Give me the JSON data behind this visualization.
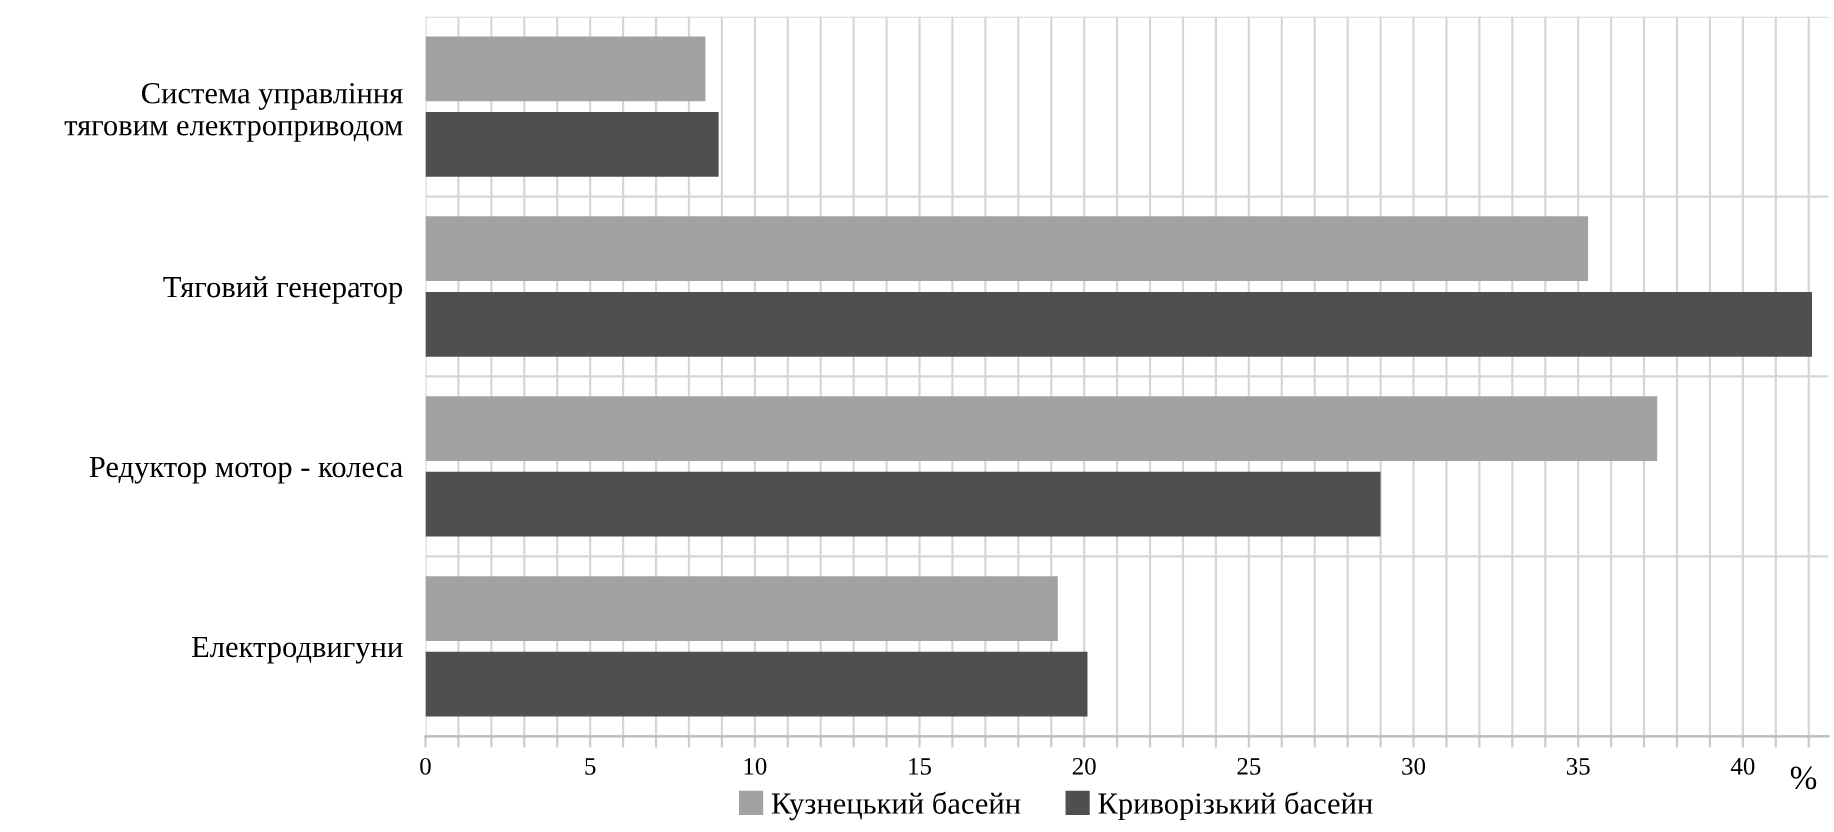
{
  "chart_data": {
    "type": "bar",
    "orientation": "horizontal",
    "xlabel": "%",
    "categories": [
      "Система управління\nтяговим електроприводом",
      "Тяговий генератор",
      "Редуктор мотор - колеса",
      "Електродвигуни"
    ],
    "series": [
      {
        "name": "Кузнецький басейн",
        "color": "#a2a2a2",
        "values": [
          8.5,
          35.3,
          37.4,
          19.2
        ]
      },
      {
        "name": "Криворізький басейн",
        "color": "#4f4f4f",
        "values": [
          8.9,
          42.1,
          29.0,
          20.1
        ]
      }
    ],
    "xlim": [
      0,
      42.6
    ],
    "xticks": [
      0,
      {
        "value": 1,
        "label": null
      },
      {
        "value": 2,
        "label": null
      },
      {
        "value": 3,
        "label": null
      },
      {
        "value": 4,
        "label": null
      },
      5,
      {
        "value": 6,
        "label": null
      },
      {
        "value": 7,
        "label": null
      },
      {
        "value": 8,
        "label": null
      },
      {
        "value": 9,
        "label": null
      },
      10,
      {
        "value": 11,
        "label": null
      },
      {
        "value": 12,
        "label": null
      },
      {
        "value": 13,
        "label": null
      },
      {
        "value": 14,
        "label": null
      },
      15,
      {
        "value": 16,
        "label": null
      },
      {
        "value": 17,
        "label": null
      },
      {
        "value": 18,
        "label": null
      },
      {
        "value": 19,
        "label": null
      },
      20,
      {
        "value": 21,
        "label": null
      },
      {
        "value": 22,
        "label": null
      },
      {
        "value": 23,
        "label": null
      },
      {
        "value": 24,
        "label": null
      },
      25,
      {
        "value": 26,
        "label": null
      },
      {
        "value": 27,
        "label": null
      },
      {
        "value": 28,
        "label": null
      },
      {
        "value": 29,
        "label": null
      },
      30,
      {
        "value": 31,
        "label": null
      },
      {
        "value": 32,
        "label": null
      },
      {
        "value": 33,
        "label": null
      },
      {
        "value": 34,
        "label": null
      },
      35,
      {
        "value": 36,
        "label": null
      },
      {
        "value": 37,
        "label": null
      },
      {
        "value": 38,
        "label": null
      },
      {
        "value": 39,
        "label": null
      },
      40,
      {
        "value": 41,
        "label": null
      },
      {
        "value": 42,
        "label": null
      }
    ],
    "grid": true,
    "legend": "bottom"
  }
}
